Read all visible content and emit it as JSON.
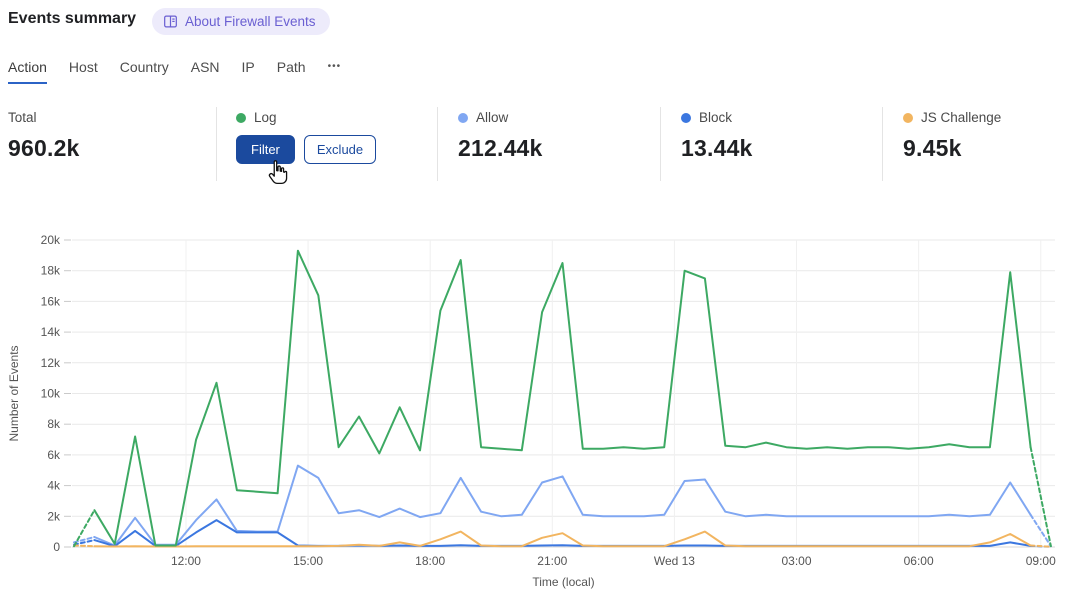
{
  "header": {
    "title": "Events summary",
    "about_badge": "About Firewall Events"
  },
  "tabs": {
    "items": [
      "Action",
      "Host",
      "Country",
      "ASN",
      "IP",
      "Path"
    ],
    "active": "Action",
    "more_label": "•••"
  },
  "cards": {
    "total": {
      "label": "Total",
      "value": "960.2k"
    },
    "log": {
      "label": "Log",
      "color": "#3da963",
      "filter_label": "Filter",
      "exclude_label": "Exclude"
    },
    "allow": {
      "label": "Allow",
      "value": "212.44k",
      "color": "#80a7f2"
    },
    "block": {
      "label": "Block",
      "value": "13.44k",
      "color": "#3b77e0"
    },
    "js_challenge": {
      "label": "JS Challenge",
      "value": "9.45k",
      "color": "#f2b560"
    }
  },
  "chart_data": {
    "type": "line",
    "title": "",
    "xlabel": "Time (local)",
    "ylabel": "Number of Events",
    "units": "thousands of events (k)",
    "x_domain_hours": [
      9.2,
      33.35
    ],
    "ylim_k": [
      0,
      20
    ],
    "y_tick_step_k": 2,
    "y_tick_labels": [
      "0",
      "2k",
      "4k",
      "6k",
      "8k",
      "10k",
      "12k",
      "14k",
      "16k",
      "18k",
      "20k"
    ],
    "x_ticks": [
      {
        "t": 12,
        "label": "12:00"
      },
      {
        "t": 15,
        "label": "15:00"
      },
      {
        "t": 18,
        "label": "18:00"
      },
      {
        "t": 21,
        "label": "21:00"
      },
      {
        "t": 24,
        "label": "Wed 13"
      },
      {
        "t": 27,
        "label": "03:00"
      },
      {
        "t": 30,
        "label": "06:00"
      },
      {
        "t": 33,
        "label": "09:00"
      }
    ],
    "edge_segments_dashed": true,
    "x_hours": [
      9.25,
      9.75,
      10.25,
      10.75,
      11.25,
      11.75,
      12.25,
      12.75,
      13.25,
      13.75,
      14.25,
      14.75,
      15.25,
      15.75,
      16.25,
      16.75,
      17.25,
      17.75,
      18.25,
      18.75,
      19.25,
      19.75,
      20.25,
      20.75,
      21.25,
      21.75,
      22.25,
      22.75,
      23.25,
      23.75,
      24.25,
      24.75,
      25.25,
      25.75,
      26.25,
      26.75,
      27.25,
      27.75,
      28.25,
      28.75,
      29.25,
      29.75,
      30.25,
      30.75,
      31.25,
      31.75,
      32.25,
      32.75,
      33.25
    ],
    "series": [
      {
        "name": "Log",
        "color": "#3da963",
        "values_k": [
          0.05,
          2.4,
          0.2,
          7.2,
          0.1,
          0.1,
          7.0,
          10.7,
          3.7,
          3.6,
          3.5,
          19.3,
          16.4,
          6.5,
          8.5,
          6.1,
          9.1,
          6.3,
          15.4,
          18.7,
          6.5,
          6.4,
          6.3,
          15.3,
          18.5,
          6.4,
          6.4,
          6.5,
          6.4,
          6.5,
          18.0,
          17.5,
          6.6,
          6.5,
          6.8,
          6.5,
          6.4,
          6.5,
          6.4,
          6.5,
          6.5,
          6.4,
          6.5,
          6.7,
          6.5,
          6.5,
          17.9,
          6.5,
          0.05
        ]
      },
      {
        "name": "Allow",
        "color": "#80a7f2",
        "values_k": [
          0.3,
          0.65,
          0.1,
          1.9,
          0.15,
          0.15,
          1.75,
          3.1,
          1.05,
          1.0,
          1.0,
          5.3,
          4.5,
          2.2,
          2.4,
          1.95,
          2.5,
          1.95,
          2.2,
          4.5,
          2.3,
          2.0,
          2.1,
          4.2,
          4.6,
          2.1,
          2.0,
          2.0,
          2.0,
          2.1,
          4.3,
          4.4,
          2.3,
          2.0,
          2.1,
          2.0,
          2.0,
          2.0,
          2.0,
          2.0,
          2.0,
          2.0,
          2.0,
          2.1,
          2.0,
          2.1,
          4.2,
          2.1,
          0.05
        ]
      },
      {
        "name": "Block",
        "color": "#3b77e0",
        "values_k": [
          0.15,
          0.45,
          0.05,
          1.05,
          0.07,
          0.07,
          0.95,
          1.75,
          0.95,
          0.95,
          0.95,
          0.1,
          0.07,
          0.07,
          0.1,
          0.07,
          0.1,
          0.07,
          0.07,
          0.12,
          0.07,
          0.07,
          0.07,
          0.1,
          0.12,
          0.07,
          0.07,
          0.07,
          0.07,
          0.07,
          0.1,
          0.1,
          0.07,
          0.07,
          0.07,
          0.07,
          0.07,
          0.07,
          0.07,
          0.07,
          0.07,
          0.07,
          0.07,
          0.07,
          0.07,
          0.07,
          0.3,
          0.07,
          0.02
        ]
      },
      {
        "name": "JS Challenge",
        "color": "#f2b560",
        "values_k": [
          0.1,
          0.05,
          0.03,
          0.05,
          0.03,
          0.03,
          0.05,
          0.05,
          0.05,
          0.05,
          0.05,
          0.05,
          0.05,
          0.07,
          0.15,
          0.07,
          0.3,
          0.07,
          0.5,
          1.0,
          0.1,
          0.05,
          0.05,
          0.6,
          0.9,
          0.1,
          0.05,
          0.05,
          0.05,
          0.05,
          0.5,
          1.0,
          0.1,
          0.05,
          0.05,
          0.05,
          0.05,
          0.05,
          0.05,
          0.05,
          0.05,
          0.05,
          0.05,
          0.05,
          0.05,
          0.3,
          0.85,
          0.1,
          0.02
        ]
      }
    ]
  }
}
